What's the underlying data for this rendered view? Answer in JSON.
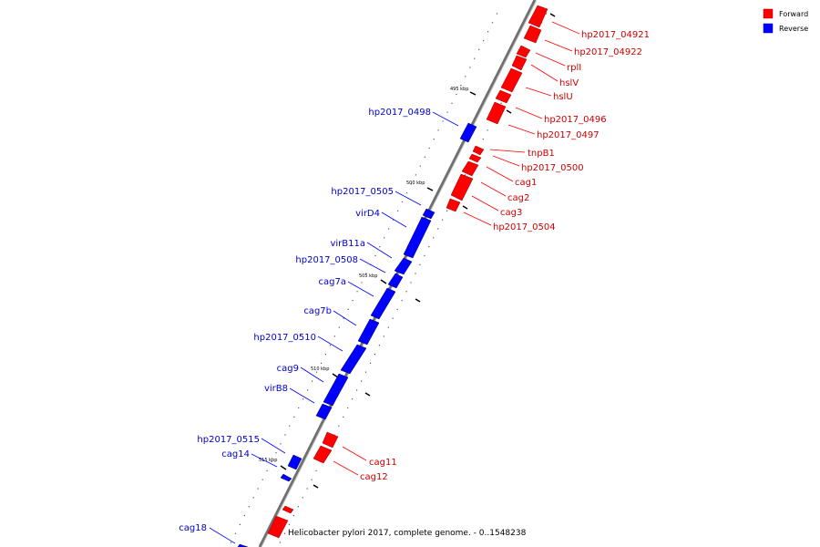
{
  "legend": [
    {
      "label": "Forward",
      "color": "#ff0000"
    },
    {
      "label": "Reverse",
      "color": "#0000ff"
    }
  ],
  "caption": "Helicobacter pylori 2017, complete genome. - 0..1548238",
  "ticks": [
    {
      "label": "495 kbp"
    },
    {
      "label": "500 kbp"
    },
    {
      "label": "505 kbp"
    },
    {
      "label": "510 kbp"
    },
    {
      "label": "515 kbp"
    }
  ],
  "forward_labels": [
    "hp2017_04921",
    "hp2017_04922",
    "rplI",
    "hslV",
    "hslU",
    "hp2017_0496",
    "hp2017_0497",
    "tnpB1",
    "hp2017_0500",
    "cag1",
    "cag2",
    "cag3",
    "hp2017_0504",
    "cag11",
    "cag12"
  ],
  "reverse_labels": [
    "hp2017_0498",
    "hp2017_0505",
    "virD4",
    "virB11a",
    "hp2017_0508",
    "cag7a",
    "cag7b",
    "hp2017_0510",
    "cag9",
    "virB8",
    "hp2017_0515",
    "cag14",
    "cag18"
  ],
  "colors": {
    "forward": "#ff0000",
    "reverse": "#0000ff",
    "backbone": "#808080"
  }
}
